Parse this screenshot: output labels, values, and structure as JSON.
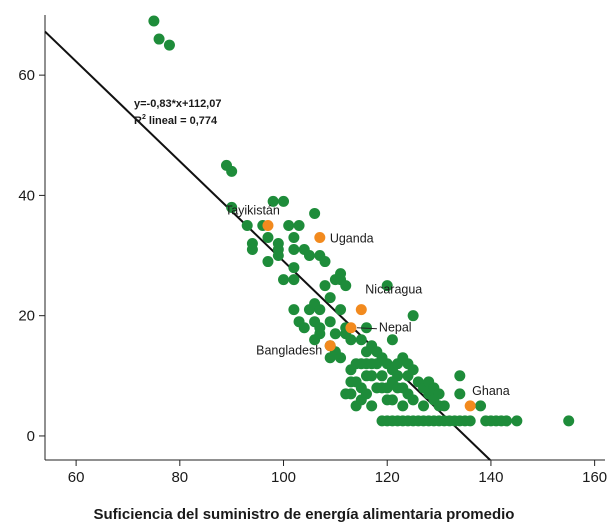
{
  "chart_data": {
    "type": "scatter",
    "title": "",
    "xlabel": "Suficiencia del suministro de energía alimentaria promedio",
    "ylabel": "",
    "xlim": [
      54,
      162
    ],
    "ylim": [
      -4,
      70
    ],
    "x_ticks": [
      "60",
      "80",
      "100",
      "120",
      "140",
      "160"
    ],
    "y_ticks": [
      "0",
      "20",
      "40",
      "60"
    ],
    "grid": false,
    "colors": {
      "points": "#1e8c3a",
      "highlight": "#f28a1e",
      "line": "#111111"
    },
    "regression": {
      "equation": "y=-0,83*x+112,07",
      "r2_prefix": "R",
      "r2_suffix": " lineal = 0,774",
      "slope": -0.83,
      "intercept": 112.07
    },
    "series": [
      {
        "points": [
          [
            75,
            69
          ],
          [
            76,
            66
          ],
          [
            78,
            65
          ],
          [
            89,
            45
          ],
          [
            90,
            44
          ],
          [
            90,
            38
          ],
          [
            93,
            35
          ],
          [
            94,
            32
          ],
          [
            94,
            31
          ],
          [
            96,
            35
          ],
          [
            97,
            33
          ],
          [
            97,
            29
          ],
          [
            98,
            39
          ],
          [
            99,
            32
          ],
          [
            99,
            31
          ],
          [
            99,
            30
          ],
          [
            100,
            39
          ],
          [
            100,
            26
          ],
          [
            101,
            35
          ],
          [
            102,
            33
          ],
          [
            102,
            31
          ],
          [
            102,
            28
          ],
          [
            102,
            26
          ],
          [
            102,
            21
          ],
          [
            103,
            35
          ],
          [
            103,
            19
          ],
          [
            104,
            31
          ],
          [
            104,
            18
          ],
          [
            105,
            30
          ],
          [
            105,
            21
          ],
          [
            106,
            37
          ],
          [
            106,
            22
          ],
          [
            106,
            19
          ],
          [
            106,
            16
          ],
          [
            107,
            30
          ],
          [
            107,
            21
          ],
          [
            107,
            18
          ],
          [
            107,
            17
          ],
          [
            108,
            29
          ],
          [
            108,
            25
          ],
          [
            109,
            23
          ],
          [
            109,
            19
          ],
          [
            109,
            15
          ],
          [
            109,
            13
          ],
          [
            110,
            26
          ],
          [
            110,
            17
          ],
          [
            110,
            14
          ],
          [
            111,
            27
          ],
          [
            111,
            26
          ],
          [
            111,
            21
          ],
          [
            111,
            13
          ],
          [
            112,
            25
          ],
          [
            112,
            18
          ],
          [
            112,
            17
          ],
          [
            112,
            7
          ],
          [
            113,
            16
          ],
          [
            113,
            11
          ],
          [
            113,
            9
          ],
          [
            113,
            7
          ],
          [
            114,
            12
          ],
          [
            114,
            9
          ],
          [
            114,
            5
          ],
          [
            115,
            16
          ],
          [
            115,
            12
          ],
          [
            115,
            8
          ],
          [
            115,
            6
          ],
          [
            116,
            18
          ],
          [
            116,
            14
          ],
          [
            116,
            12
          ],
          [
            116,
            10
          ],
          [
            116,
            7
          ],
          [
            117,
            15
          ],
          [
            117,
            12
          ],
          [
            117,
            10
          ],
          [
            117,
            5
          ],
          [
            118,
            14
          ],
          [
            118,
            12
          ],
          [
            118,
            8
          ],
          [
            119,
            13
          ],
          [
            119,
            10
          ],
          [
            119,
            8
          ],
          [
            119,
            2.5
          ],
          [
            120,
            25
          ],
          [
            120,
            12
          ],
          [
            120,
            8
          ],
          [
            120,
            6
          ],
          [
            120,
            2.5
          ],
          [
            121,
            16
          ],
          [
            121,
            11
          ],
          [
            121,
            9
          ],
          [
            121,
            6
          ],
          [
            121,
            2.5
          ],
          [
            122,
            12
          ],
          [
            122,
            10
          ],
          [
            122,
            8
          ],
          [
            122,
            2.5
          ],
          [
            123,
            13
          ],
          [
            123,
            8
          ],
          [
            123,
            5
          ],
          [
            123,
            2.5
          ],
          [
            124,
            12
          ],
          [
            124,
            10
          ],
          [
            124,
            7
          ],
          [
            124,
            2.5
          ],
          [
            125,
            20
          ],
          [
            125,
            11
          ],
          [
            125,
            6
          ],
          [
            125,
            2.5
          ],
          [
            126,
            9
          ],
          [
            126,
            2.5
          ],
          [
            127,
            8
          ],
          [
            127,
            5
          ],
          [
            127,
            2.5
          ],
          [
            128,
            9
          ],
          [
            128,
            7
          ],
          [
            128,
            2.5
          ],
          [
            129,
            8
          ],
          [
            129,
            6
          ],
          [
            129,
            2.5
          ],
          [
            130,
            7
          ],
          [
            130,
            5
          ],
          [
            130,
            2.5
          ],
          [
            131,
            5
          ],
          [
            131,
            2.5
          ],
          [
            132,
            2.5
          ],
          [
            133,
            2.5
          ],
          [
            134,
            10
          ],
          [
            134,
            7
          ],
          [
            134,
            2.5
          ],
          [
            135,
            2.5
          ],
          [
            136,
            2.5
          ],
          [
            138,
            5
          ],
          [
            139,
            2.5
          ],
          [
            140,
            2.5
          ],
          [
            141,
            2.5
          ],
          [
            142,
            2.5
          ],
          [
            143,
            2.5
          ],
          [
            145,
            2.5
          ],
          [
            155,
            2.5
          ]
        ]
      },
      {
        "points": [
          {
            "x": 97,
            "y": 35,
            "label": "Tayikistán"
          },
          {
            "x": 107,
            "y": 33,
            "label": "Uganda"
          },
          {
            "x": 115,
            "y": 21,
            "label": "Nicaragua"
          },
          {
            "x": 113,
            "y": 18,
            "label": "Nepal"
          },
          {
            "x": 109,
            "y": 15,
            "label": "Bangladesh"
          },
          {
            "x": 136,
            "y": 5,
            "label": "Ghana"
          }
        ]
      }
    ]
  }
}
